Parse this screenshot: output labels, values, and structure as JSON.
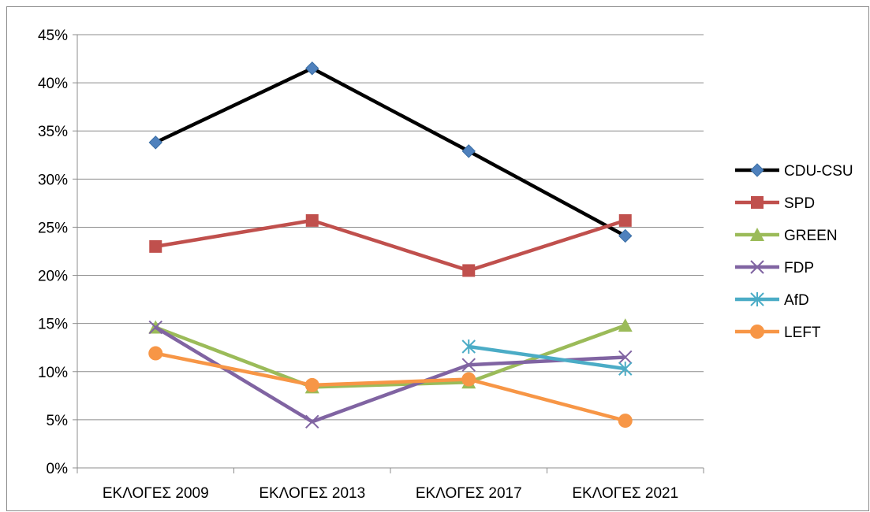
{
  "chart_data": {
    "type": "line",
    "categories": [
      "ΕΚΛΟΓΕΣ 2009",
      "ΕΚΛΟΓΕΣ 2013",
      "ΕΚΛΟΓΕΣ 2017",
      "ΕΚΛΟΓΕΣ 2021"
    ],
    "y_ticks": [
      "0%",
      "5%",
      "10%",
      "15%",
      "20%",
      "25%",
      "30%",
      "35%",
      "40%",
      "45%"
    ],
    "ylim": [
      0,
      45
    ],
    "y_unit": "%",
    "grid": true,
    "legend_position": "right",
    "series": [
      {
        "name": "CDU-CSU",
        "values": [
          33.8,
          41.5,
          32.9,
          24.1
        ],
        "line_color": "#000000",
        "marker_color": "#4F81BD",
        "marker": "diamond"
      },
      {
        "name": "SPD",
        "values": [
          23.0,
          25.7,
          20.5,
          25.7
        ],
        "line_color": "#C0504D",
        "marker_color": "#C0504D",
        "marker": "square"
      },
      {
        "name": "GREEN",
        "values": [
          14.6,
          8.4,
          8.9,
          14.8
        ],
        "line_color": "#9BBB59",
        "marker_color": "#9BBB59",
        "marker": "triangle"
      },
      {
        "name": "FDP",
        "values": [
          14.6,
          4.8,
          10.7,
          11.5
        ],
        "line_color": "#8064A2",
        "marker_color": "#8064A2",
        "marker": "x"
      },
      {
        "name": "AfD",
        "values": [
          null,
          null,
          12.6,
          10.3
        ],
        "line_color": "#4BACC6",
        "marker_color": "#4BACC6",
        "marker": "star"
      },
      {
        "name": "LEFT",
        "values": [
          11.9,
          8.6,
          9.2,
          4.9
        ],
        "line_color": "#F79646",
        "marker_color": "#F79646",
        "marker": "circle"
      }
    ]
  }
}
